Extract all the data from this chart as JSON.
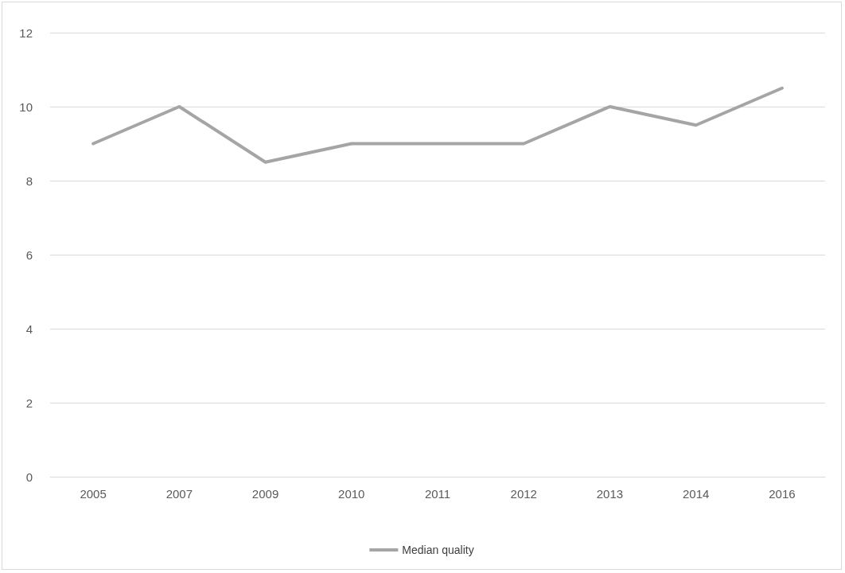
{
  "chart_data": {
    "type": "line",
    "categories": [
      "2005",
      "2007",
      "2009",
      "2010",
      "2011",
      "2012",
      "2013",
      "2014",
      "2016"
    ],
    "series": [
      {
        "name": "Median quality",
        "color": "#a5a5a5",
        "values": [
          9,
          10,
          8.5,
          9,
          9,
          9,
          10,
          9.5,
          10.5
        ]
      }
    ],
    "ylim": [
      0,
      12
    ],
    "yticks": [
      0,
      2,
      4,
      6,
      8,
      10,
      12
    ],
    "grid": "y",
    "legend": "bottom",
    "marker": "none",
    "line_style": "solid"
  }
}
